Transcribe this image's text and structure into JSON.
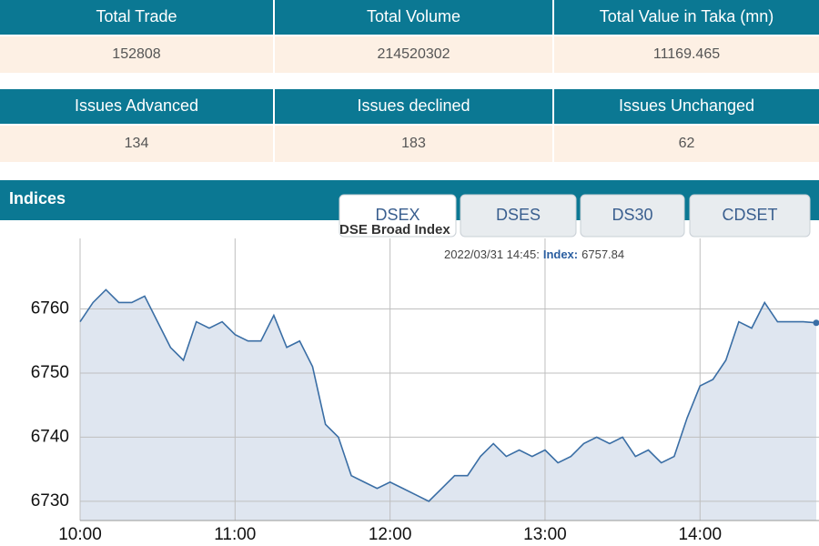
{
  "tables": [
    {
      "headers": [
        "Total Trade",
        "Total Volume",
        "Total Value in Taka (mn)"
      ],
      "values": [
        152808,
        214520302,
        11169.465
      ]
    },
    {
      "headers": [
        "Issues Advanced",
        "Issues declined",
        "Issues Unchanged"
      ],
      "values": [
        134,
        183,
        62
      ]
    }
  ],
  "section_title": "Indices",
  "tabs": [
    "DSEX",
    "DSES",
    "DS30",
    "CDSET"
  ],
  "tooltip": {
    "time": "2022/03/31 14:45:",
    "label": "Index:",
    "value": 6757.84
  },
  "chart_data": {
    "type": "line",
    "title": "DSE Broad Index",
    "x": [
      "10:00",
      "10:05",
      "10:10",
      "10:15",
      "10:20",
      "10:25",
      "10:30",
      "10:35",
      "10:40",
      "10:45",
      "10:50",
      "10:55",
      "11:00",
      "11:05",
      "11:10",
      "11:15",
      "11:20",
      "11:25",
      "11:30",
      "11:35",
      "11:40",
      "11:45",
      "11:50",
      "11:55",
      "12:00",
      "12:05",
      "12:10",
      "12:15",
      "12:20",
      "12:25",
      "12:30",
      "12:35",
      "12:40",
      "12:45",
      "12:50",
      "12:55",
      "13:00",
      "13:05",
      "13:10",
      "13:15",
      "13:20",
      "13:25",
      "13:30",
      "13:35",
      "13:40",
      "13:45",
      "13:50",
      "13:55",
      "14:00",
      "14:05",
      "14:10",
      "14:15",
      "14:20",
      "14:25",
      "14:30",
      "14:35",
      "14:40",
      "14:45"
    ],
    "series": [
      {
        "name": "DSEX",
        "color": "#3a6ea5",
        "values": [
          6758,
          6761,
          6763,
          6761,
          6761,
          6762,
          6758,
          6754,
          6752,
          6758,
          6757,
          6758,
          6756,
          6755,
          6755,
          6759,
          6754,
          6755,
          6751,
          6742,
          6740,
          6734,
          6733,
          6732,
          6733,
          6732,
          6731,
          6730,
          6732,
          6734,
          6734,
          6737,
          6739,
          6737,
          6738,
          6737,
          6738,
          6736,
          6737,
          6739,
          6740,
          6739,
          6740,
          6737,
          6738,
          6736,
          6737,
          6743,
          6748,
          6749,
          6752,
          6758,
          6757,
          6761,
          6758,
          6758,
          6758,
          6757.84
        ]
      }
    ],
    "xlim": [
      "10:00",
      "14:45"
    ],
    "xticks": [
      "10:00",
      "11:00",
      "12:00",
      "13:00",
      "14:00"
    ],
    "ylim": [
      6727,
      6771
    ],
    "yticks": [
      6730,
      6740,
      6750,
      6760
    ],
    "grid": true,
    "fill": "#dfe6f0"
  }
}
